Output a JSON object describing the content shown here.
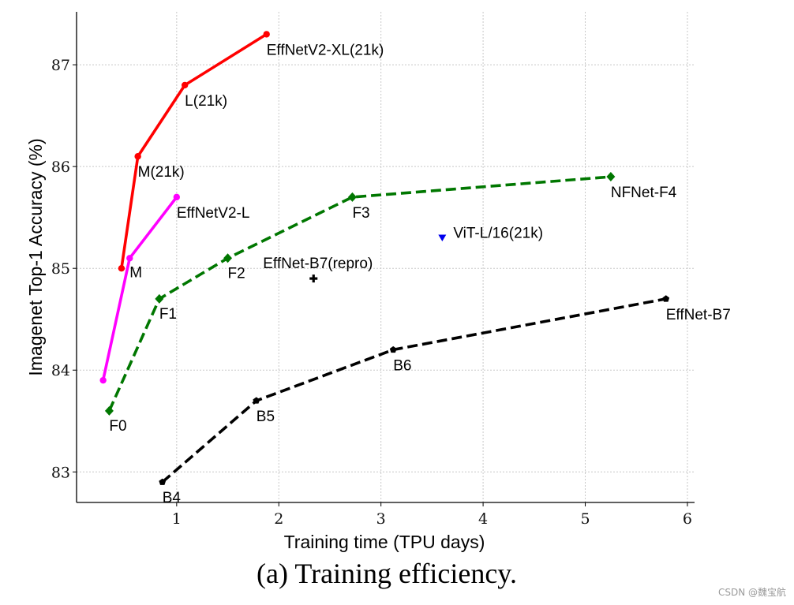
{
  "chart_data": {
    "type": "line",
    "title": "",
    "xlabel": "Training time (TPU days)",
    "ylabel": "Imagenet Top-1 Accuracy (%)",
    "xlim": [
      0.02,
      6.07
    ],
    "ylim": [
      82.7,
      87.52
    ],
    "xticks": [
      1,
      2,
      3,
      4,
      5,
      6
    ],
    "yticks": [
      83,
      84,
      85,
      86,
      87
    ],
    "grid": true,
    "series": [
      {
        "id": "effnetv2-21k",
        "color": "#ff0000",
        "style": "solid",
        "marker": "circle",
        "points": [
          {
            "x": 0.46,
            "y": 85.0,
            "label": ""
          },
          {
            "x": 0.62,
            "y": 86.1,
            "label": "M(21k)"
          },
          {
            "x": 1.08,
            "y": 86.8,
            "label": "L(21k)"
          },
          {
            "x": 1.88,
            "y": 87.3,
            "label": "EffNetV2-XL(21k)"
          }
        ]
      },
      {
        "id": "effnetv2",
        "color": "#ff00ff",
        "style": "solid",
        "marker": "circle",
        "points": [
          {
            "x": 0.28,
            "y": 83.9,
            "label": ""
          },
          {
            "x": 0.54,
            "y": 85.1,
            "label": "M"
          },
          {
            "x": 1.0,
            "y": 85.7,
            "label": "EffNetV2-L"
          }
        ]
      },
      {
        "id": "nfnet",
        "color": "#007700",
        "style": "dashed",
        "marker": "diamond",
        "points": [
          {
            "x": 0.34,
            "y": 83.6,
            "label": "F0"
          },
          {
            "x": 0.83,
            "y": 84.7,
            "label": "F1"
          },
          {
            "x": 1.5,
            "y": 85.1,
            "label": "F2"
          },
          {
            "x": 2.72,
            "y": 85.7,
            "label": "F3"
          },
          {
            "x": 5.25,
            "y": 85.9,
            "label": "NFNet-F4"
          }
        ]
      },
      {
        "id": "efficientnet",
        "color": "#000000",
        "style": "dashed",
        "marker": "pentagon",
        "points": [
          {
            "x": 0.86,
            "y": 82.9,
            "label": "B4"
          },
          {
            "x": 1.78,
            "y": 83.7,
            "label": "B5"
          },
          {
            "x": 3.12,
            "y": 84.2,
            "label": "B6"
          },
          {
            "x": 5.79,
            "y": 84.7,
            "label": "EffNet-B7"
          }
        ]
      },
      {
        "id": "effnet-b7-repro",
        "color": "#000000",
        "style": "none",
        "marker": "plus",
        "points": [
          {
            "x": 2.34,
            "y": 84.9,
            "label": "EffNet-B7(repro)"
          }
        ]
      },
      {
        "id": "vit",
        "color": "#0000ee",
        "style": "none",
        "marker": "triangle-down",
        "points": [
          {
            "x": 3.6,
            "y": 85.3,
            "label": "ViT-L/16(21k)"
          }
        ]
      }
    ]
  },
  "caption": "(a) Training efficiency.",
  "watermark": "CSDN @魏宝航"
}
